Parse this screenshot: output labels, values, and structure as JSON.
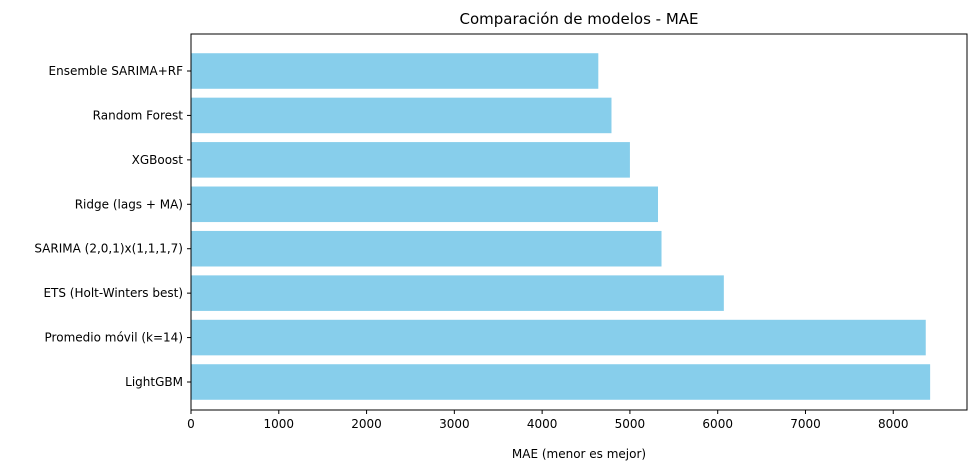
{
  "chart_data": {
    "type": "bar",
    "orientation": "horizontal",
    "title": "Comparación de modelos - MAE",
    "xlabel": "MAE (menor es mejor)",
    "ylabel": "",
    "categories": [
      "Ensemble SARIMA+RF",
      "Random Forest",
      "XGBoost",
      "Ridge (lags + MA)",
      "SARIMA (2,0,1)x(1,1,1,7)",
      "ETS (Holt-Winters best)",
      "Promedio móvil (k=14)",
      "LightGBM"
    ],
    "values": [
      4640,
      4790,
      5000,
      5320,
      5360,
      6070,
      8370,
      8420
    ],
    "xlim": [
      0,
      8840
    ],
    "xticks": [
      0,
      1000,
      2000,
      3000,
      4000,
      5000,
      6000,
      7000,
      8000
    ],
    "grid": false,
    "bar_color": "#87ceeb"
  }
}
